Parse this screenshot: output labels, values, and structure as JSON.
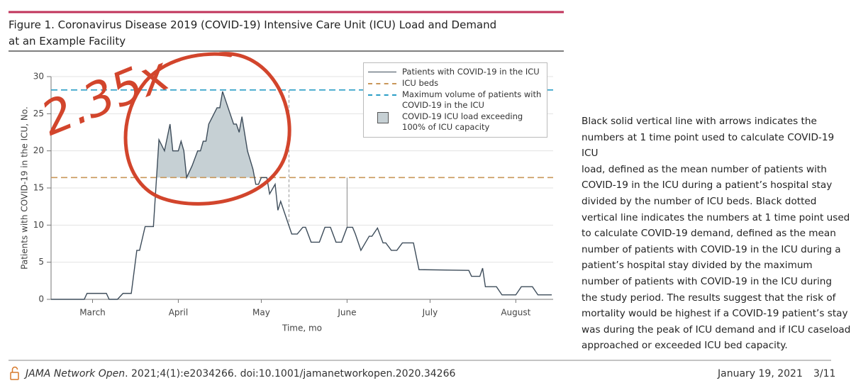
{
  "title": [
    "Figure 1. Coronavirus Disease 2019 (COVID-19) Intensive Care Unit (ICU) Load and Demand",
    "at an Example Facility"
  ],
  "chart_data": {
    "type": "line",
    "annotation": "2.35x",
    "x_label": "Time, mo",
    "y_label": "Patients with COVID-19 in the ICU, No.",
    "x": [
      0,
      12,
      13,
      20,
      21,
      24,
      26,
      29,
      31,
      32,
      34,
      37,
      39,
      41,
      43,
      44,
      46,
      47,
      48,
      49,
      51,
      53,
      54,
      55,
      56,
      57,
      60,
      61,
      62,
      64,
      66,
      67,
      68,
      69,
      71,
      73,
      74,
      75,
      76,
      78,
      79,
      81,
      82,
      83,
      85,
      87,
      89,
      91,
      92,
      94,
      97,
      99,
      101,
      103,
      105,
      107,
      109,
      110,
      112,
      115,
      116,
      118,
      120,
      121,
      123,
      125,
      127,
      131,
      133,
      151,
      152,
      155,
      156,
      157,
      161,
      163,
      168,
      170,
      174,
      176,
      181
    ],
    "series": [
      {
        "name": "Patients with COVID-19 in the ICU",
        "color": "#3d4c5a",
        "values": [
          0,
          0,
          0.8,
          0.8,
          0,
          0,
          0.8,
          0.8,
          6.6,
          6.6,
          9.8,
          9.8,
          21.5,
          20,
          23.6,
          20,
          20,
          21.3,
          20,
          16.4,
          18,
          20,
          20,
          21.3,
          21.3,
          23.6,
          25.8,
          25.8,
          28,
          25.8,
          23.6,
          23.6,
          22.5,
          24.6,
          20,
          17.5,
          15.5,
          15.5,
          16.4,
          16.4,
          14.2,
          15.5,
          12,
          13.2,
          11,
          8.8,
          8.8,
          9.7,
          9.7,
          7.7,
          7.7,
          9.7,
          9.7,
          7.7,
          7.7,
          9.7,
          9.7,
          8.8,
          6.6,
          8.5,
          8.5,
          9.6,
          7.6,
          7.6,
          6.6,
          6.6,
          7.6,
          7.6,
          4,
          3.9,
          3.1,
          3.1,
          4.2,
          1.7,
          1.7,
          0.6,
          0.6,
          1.7,
          1.7,
          0.6,
          0.6
        ]
      }
    ],
    "reference_lines": [
      {
        "name": "ICU beds",
        "value": 16.4,
        "color": "#c9975a"
      },
      {
        "name": "Maximum volume of patients with COVID-19 in the ICU",
        "value": 28.2,
        "color": "#2b9ec6"
      }
    ],
    "area_label": "COVID-19 ICU load exceeding 100% of ICU capacity",
    "area_color": "#c6d0d4",
    "load_time_point": 107,
    "demand_time_point": 86,
    "xlim": [
      0,
      181.5
    ],
    "ylim": [
      0,
      30
    ],
    "xticks": [
      {
        "value": 15,
        "label": "March"
      },
      {
        "value": 46,
        "label": "April"
      },
      {
        "value": 76,
        "label": "May"
      },
      {
        "value": 107,
        "label": "June"
      },
      {
        "value": 137,
        "label": "July"
      },
      {
        "value": 168,
        "label": "August"
      }
    ],
    "yticks": [
      0,
      5,
      10,
      15,
      20,
      25,
      30
    ],
    "grid": true
  },
  "caption_lines": [
    "Black solid vertical line with arrows indicates the",
    "numbers at 1 time point used to calculate COVID-19 ICU",
    "load, defined as the mean number of patients with",
    "COVID-19 in the ICU during a patient’s hospital stay",
    "divided by the number of ICU beds. Black dotted",
    "vertical line indicates the numbers at 1 time point used",
    "to calculate COVID-19 demand, defined as the mean",
    "number of patients with COVID-19 in the ICU during a",
    "patient’s hospital stay divided by the maximum",
    "number of patients with COVID-19 in the ICU during",
    "the study period. The results suggest that the risk of",
    "mortality would be highest if a COVID-19 patient’s stay",
    "was during the peak of ICU demand and if ICU caseload",
    "approached or exceeded ICU bed capacity."
  ],
  "footer": {
    "journal": "JAMA Network Open",
    "citation": ". 2021;4(1):e2034266. doi:10.1001/jamanetworkopen.2020.34266",
    "date": "January 19, 2021",
    "page": "3/11"
  }
}
